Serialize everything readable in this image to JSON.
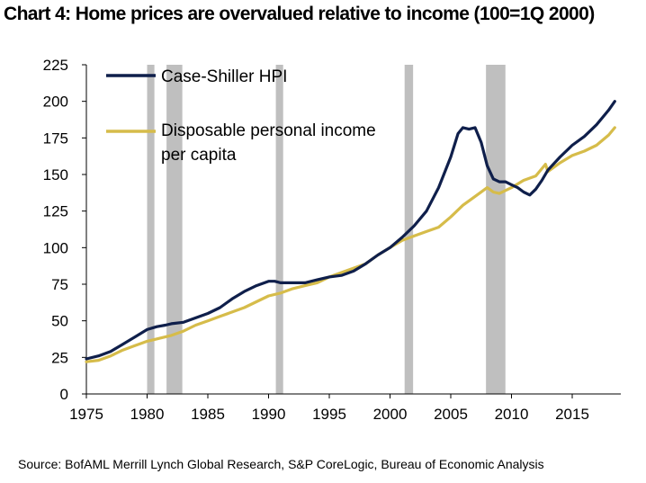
{
  "title": "Chart 4: Home prices are overvalued relative to income (100=1Q 2000)",
  "source": "Source:  BofAML Merrill Lynch Global Research, S&P CoreLogic,  Bureau of Economic  Analysis",
  "chart_data": {
    "type": "line",
    "title": "Chart 4: Home prices are overvalued relative to income (100=1Q 2000)",
    "xlabel": "",
    "ylabel": "",
    "xlim": [
      1975,
      2019
    ],
    "ylim": [
      0,
      225
    ],
    "yticks": [
      "0",
      "25",
      "50",
      "75",
      "100",
      "125",
      "150",
      "175",
      "200",
      "225"
    ],
    "xticks": [
      "1975",
      "1980",
      "1985",
      "1990",
      "1995",
      "2000",
      "2005",
      "2010",
      "2015"
    ],
    "recessions": [
      {
        "start": 1980.0,
        "end": 1980.6
      },
      {
        "start": 1981.6,
        "end": 1982.9
      },
      {
        "start": 1990.6,
        "end": 1991.2
      },
      {
        "start": 2001.2,
        "end": 2001.9
      },
      {
        "start": 2007.9,
        "end": 2009.5
      }
    ],
    "series": [
      {
        "name": "Case-Shiller HPI",
        "color": "#0f1f4b",
        "x": [
          1975.0,
          1976.0,
          1977.0,
          1978.0,
          1979.0,
          1980.0,
          1980.8,
          1981.5,
          1982.0,
          1983.0,
          1984.0,
          1985.0,
          1986.0,
          1987.0,
          1988.0,
          1989.0,
          1990.0,
          1990.5,
          1991.0,
          1992.0,
          1993.0,
          1994.0,
          1995.0,
          1996.0,
          1997.0,
          1998.0,
          1999.0,
          2000.0,
          2001.0,
          2002.0,
          2003.0,
          2004.0,
          2005.0,
          2005.6,
          2006.0,
          2006.5,
          2007.0,
          2007.5,
          2008.0,
          2008.5,
          2009.0,
          2009.5,
          2010.0,
          2010.5,
          2011.0,
          2011.5,
          2012.0,
          2012.5,
          2013.0,
          2014.0,
          2015.0,
          2016.0,
          2017.0,
          2018.0,
          2018.5
        ],
        "values": [
          24,
          26,
          29,
          34,
          39,
          44,
          46,
          47,
          48,
          49,
          52,
          55,
          59,
          65,
          70,
          74,
          77,
          77,
          76,
          76,
          76,
          78,
          80,
          81,
          84,
          89,
          95,
          100,
          107,
          115,
          125,
          141,
          162,
          178,
          182,
          181,
          182,
          172,
          156,
          147,
          145,
          145,
          143,
          141,
          138,
          136,
          140,
          146,
          153,
          162,
          170,
          176,
          184,
          194,
          200
        ]
      },
      {
        "name": "Disposable personal income per capita",
        "color": "#d6bc4a",
        "x": [
          1975.0,
          1976.0,
          1977.0,
          1978.0,
          1979.0,
          1980.0,
          1981.0,
          1982.0,
          1983.0,
          1984.0,
          1985.0,
          1986.0,
          1987.0,
          1988.0,
          1989.0,
          1990.0,
          1991.0,
          1992.0,
          1993.0,
          1994.0,
          1995.0,
          1996.0,
          1997.0,
          1998.0,
          1999.0,
          2000.0,
          2001.0,
          2002.0,
          2003.0,
          2004.0,
          2005.0,
          2006.0,
          2007.0,
          2008.0,
          2008.5,
          2009.0,
          2010.0,
          2011.0,
          2012.0,
          2012.8,
          2013.0,
          2014.0,
          2015.0,
          2016.0,
          2017.0,
          2018.0,
          2018.5
        ],
        "values": [
          22,
          23,
          26,
          30,
          33,
          36,
          38,
          40,
          43,
          47,
          50,
          53,
          56,
          59,
          63,
          67,
          69,
          72,
          74,
          76,
          80,
          83,
          86,
          89,
          95,
          100,
          105,
          108,
          111,
          114,
          121,
          129,
          135,
          141,
          138,
          137,
          141,
          146,
          149,
          157,
          152,
          158,
          163,
          166,
          170,
          177,
          182
        ]
      }
    ],
    "legend": [
      {
        "label": "Case-Shiller HPI",
        "color": "#0f1f4b"
      },
      {
        "label": "Disposable personal income",
        "label2": "per capita",
        "color": "#d6bc4a"
      }
    ]
  }
}
